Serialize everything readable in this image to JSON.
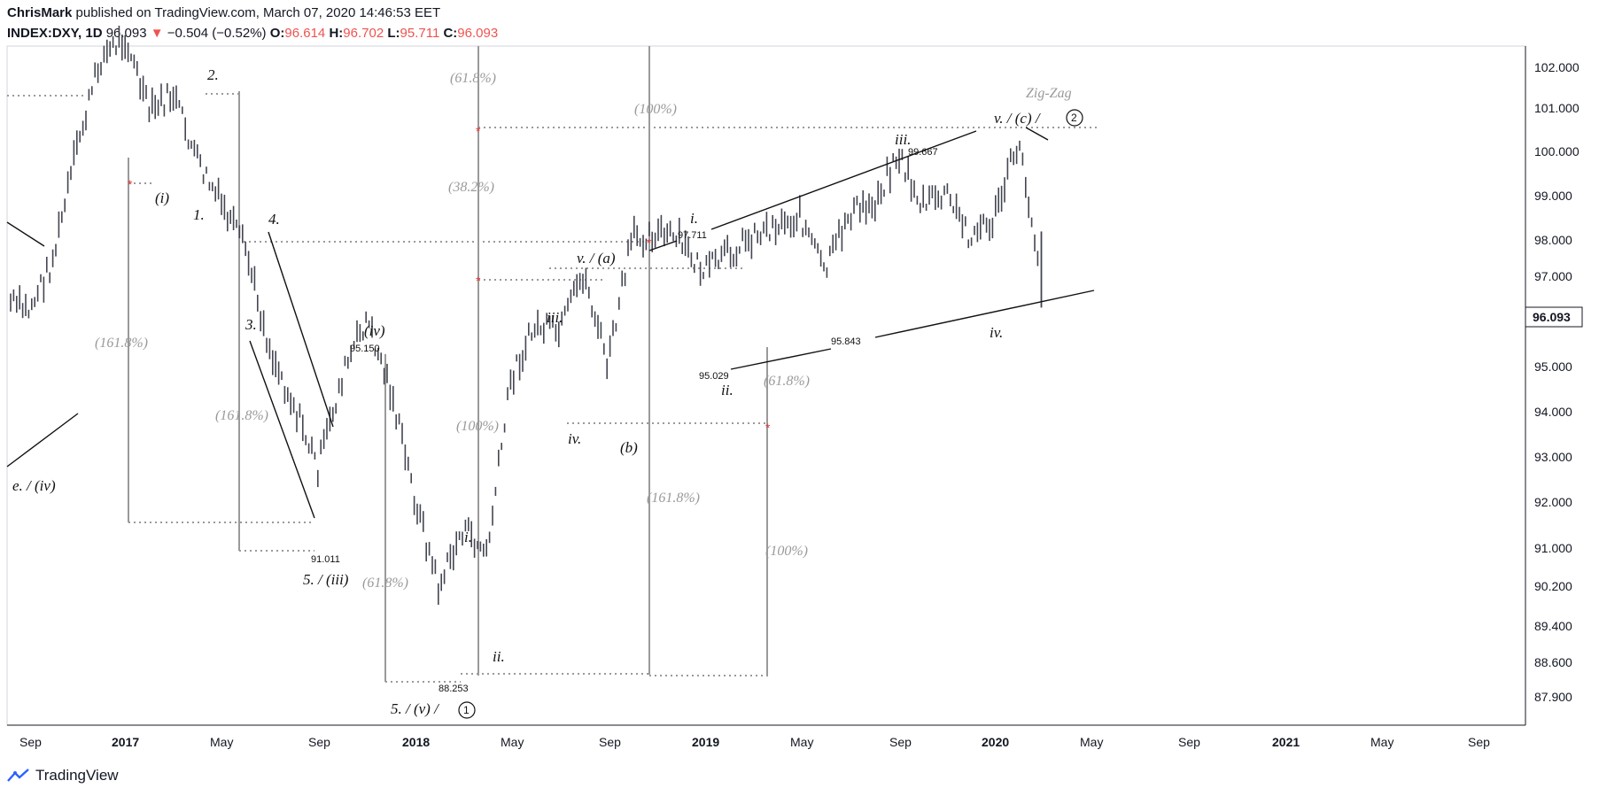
{
  "header": {
    "author": "ChrisMark",
    "published_text": "published on TradingView.com, March 07, 2020 14:46:53 EET",
    "symbol": "INDEX:DXY, 1D",
    "last": "96.093",
    "change_arrow": "▼",
    "change": "−0.504 (−0.52%)",
    "o_label": "O:",
    "o_value": "96.614",
    "h_label": "H:",
    "h_value": "96.702",
    "l_label": "L:",
    "l_value": "95.711",
    "c_label": "C:",
    "c_value": "96.093"
  },
  "footer": {
    "brand": "TradingView"
  },
  "colors": {
    "candle": "#434651",
    "fib_gray": "#9a9a9a",
    "red_marker": "#e53935",
    "down": "#ef5350"
  },
  "chart_data": {
    "type": "line",
    "x_tick_labels": [
      "Sep",
      "2017",
      "May",
      "Sep",
      "2018",
      "May",
      "Sep",
      "2019",
      "May",
      "Sep",
      "2020",
      "May",
      "Sep",
      "2021",
      "May",
      "Sep"
    ],
    "y_tick_labels": [
      "102.000",
      "101.000",
      "100.000",
      "99.000",
      "98.000",
      "97.000",
      "95.000",
      "94.000",
      "93.000",
      "92.000",
      "91.000",
      "90.200",
      "89.400",
      "88.600",
      "87.900"
    ],
    "y_tick_values": [
      102.0,
      101.0,
      100.0,
      99.0,
      98.0,
      97.0,
      95.0,
      94.0,
      93.0,
      92.0,
      91.0,
      90.2,
      89.4,
      88.6,
      87.9
    ],
    "last_price_label": "96.093",
    "series": [
      {
        "values_x": [
          "2016-08",
          "2016-09",
          "2016-10",
          "2016-11",
          "2016-12",
          "2017-01",
          "2017-02",
          "2017-03",
          "2017-04",
          "2017-05",
          "2017-06",
          "2017-07",
          "2017-08",
          "2017-09",
          "2017-10",
          "2017-11",
          "2017-12",
          "2018-01",
          "2018-02",
          "2018-03",
          "2018-04",
          "2018-05",
          "2018-06",
          "2018-07",
          "2018-08",
          "2018-09",
          "2018-10",
          "2018-11",
          "2018-12",
          "2019-01",
          "2019-02",
          "2019-03",
          "2019-04",
          "2019-05",
          "2019-06",
          "2019-07",
          "2019-08",
          "2019-09",
          "2019-10",
          "2019-11",
          "2019-12",
          "2020-01",
          "2020-02",
          "2020-03"
        ],
        "values_y": [
          95.5,
          95.2,
          96.5,
          99.5,
          102.0,
          102.6,
          100.5,
          101.0,
          99.2,
          98.0,
          96.8,
          94.2,
          92.8,
          91.2,
          93.5,
          95.0,
          93.2,
          90.5,
          88.3,
          89.8,
          89.2,
          93.5,
          94.8,
          94.6,
          96.2,
          93.8,
          97.1,
          97.3,
          97.0,
          96.2,
          96.7,
          97.2,
          97.5,
          97.7,
          96.2,
          97.8,
          98.0,
          99.4,
          98.0,
          98.3,
          97.2,
          97.6,
          99.7,
          96.1
        ]
      }
    ],
    "price_labels": [
      "88.253",
      "91.011",
      "95.150",
      "97.711",
      "95.029",
      "95.843",
      "99.667"
    ],
    "wave_labels": [
      "2.",
      "(i)",
      "1.",
      "4.",
      "3.",
      "5. / (iii)",
      "(iv)",
      "e. / (iv)",
      "5. / (v) /",
      "1",
      "i.",
      "ii.",
      "iii.",
      "iv.",
      "v. / (a)",
      "(b)",
      "i.",
      "ii.",
      "iii.",
      "iv.",
      "v. / (c) /",
      "2",
      "Zig-Zag"
    ],
    "fib_labels": [
      "(161.8%)",
      "(161.8%)",
      "(61.8%)",
      "(61.8%)",
      "(38.2%)",
      "(100%)",
      "(100%)",
      "(161.8%)",
      "(61.8%)",
      "(100%)"
    ]
  }
}
